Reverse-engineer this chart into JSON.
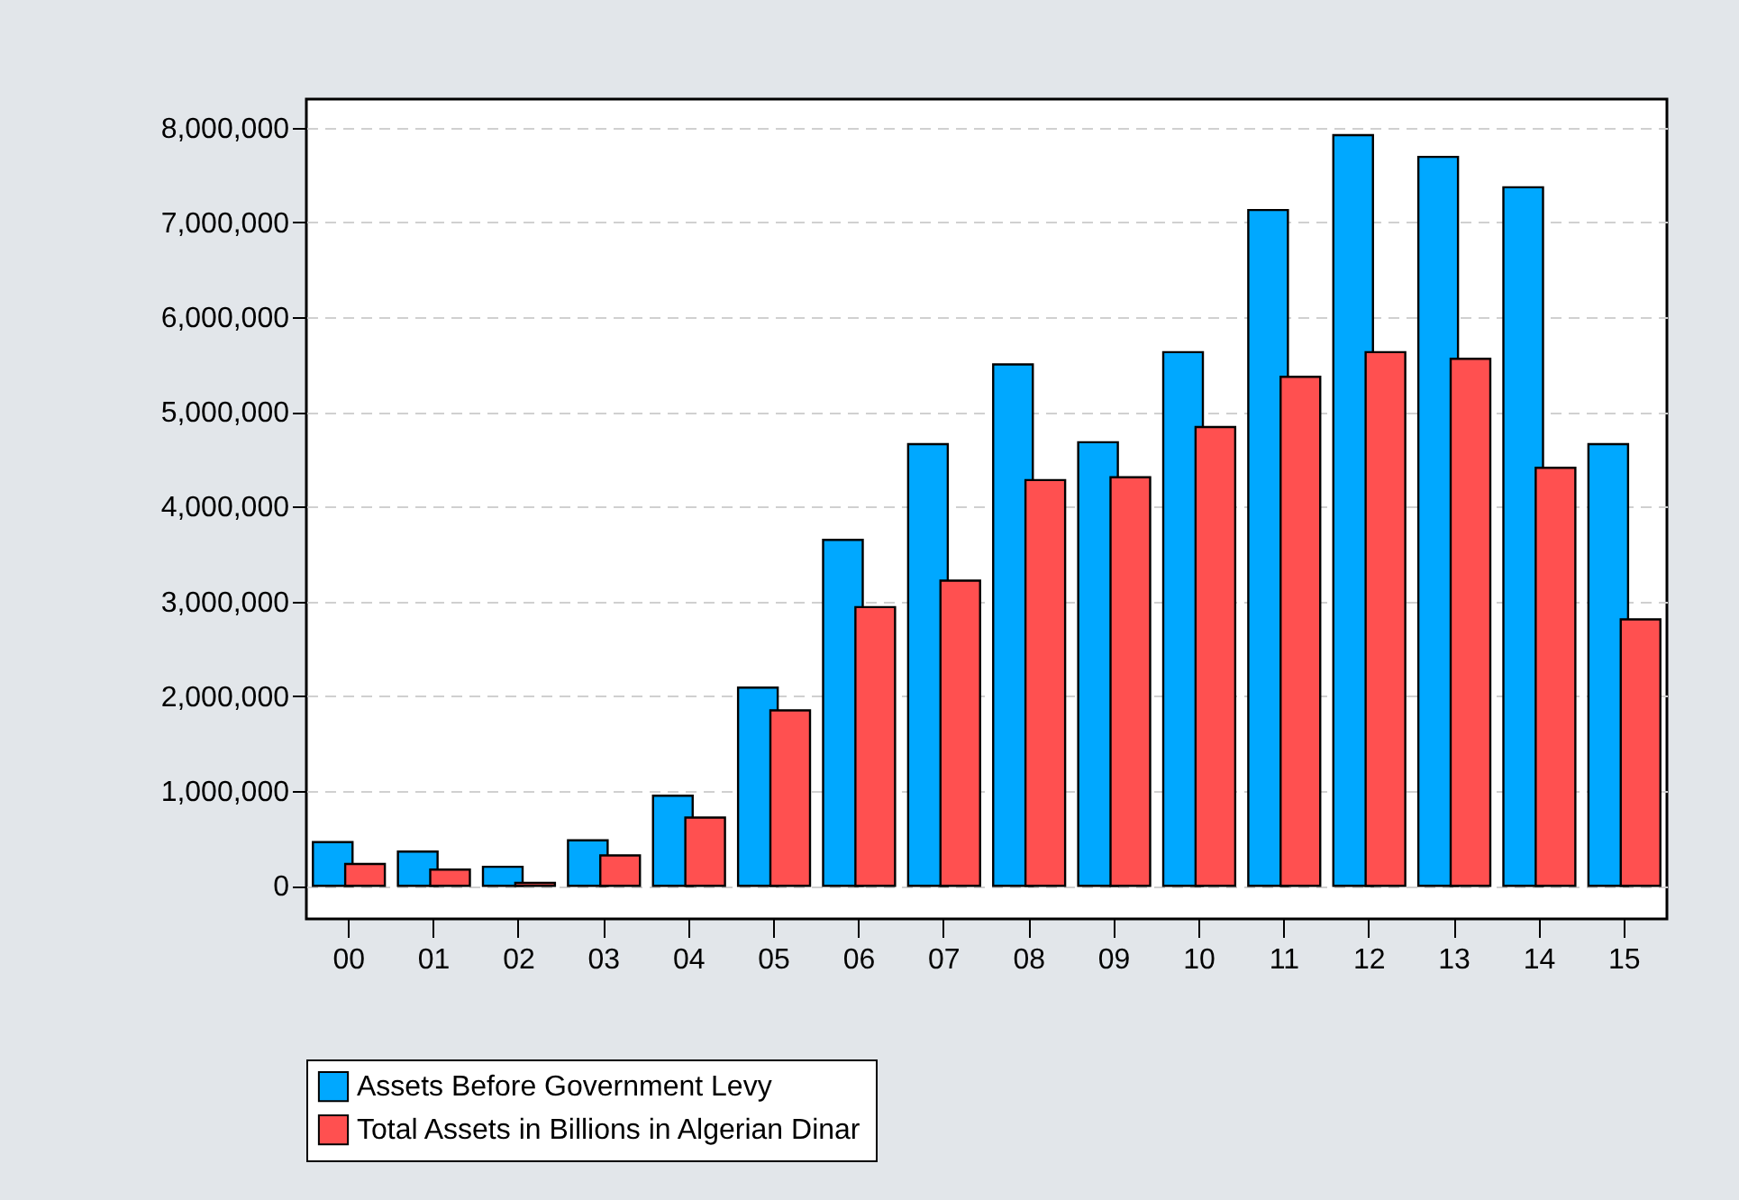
{
  "chart_data": {
    "type": "bar",
    "categories": [
      "00",
      "01",
      "02",
      "03",
      "04",
      "05",
      "06",
      "07",
      "08",
      "09",
      "10",
      "11",
      "12",
      "13",
      "14",
      "15"
    ],
    "series": [
      {
        "name": "Assets Before Government Levy",
        "color": "#00a8ff",
        "values": [
          460000,
          360000,
          200000,
          480000,
          950000,
          2090000,
          3650000,
          4660000,
          5500000,
          4680000,
          5630000,
          7130000,
          7920000,
          7690000,
          7370000,
          4660000
        ]
      },
      {
        "name": "Total Assets in Billions in Algerian Dinar",
        "color": "#ff5050",
        "values": [
          230000,
          170000,
          30000,
          320000,
          720000,
          1850000,
          2940000,
          3220000,
          4280000,
          4310000,
          4840000,
          5370000,
          5630000,
          5560000,
          4410000,
          2810000
        ]
      }
    ],
    "ylim": [
      -350000,
      8300000
    ],
    "yticks": [
      {
        "value": 0,
        "label": "0"
      },
      {
        "value": 1000000,
        "label": "1,000,000"
      },
      {
        "value": 2000000,
        "label": "2,000,000"
      },
      {
        "value": 3000000,
        "label": "3,000,000"
      },
      {
        "value": 4000000,
        "label": "4,000,000"
      },
      {
        "value": 5000000,
        "label": "5,000,000"
      },
      {
        "value": 6000000,
        "label": "6,000,000"
      },
      {
        "value": 7000000,
        "label": "7,000,000"
      },
      {
        "value": 8000000,
        "label": "8,000,000"
      }
    ],
    "grid": "y",
    "legend": "bottom"
  }
}
